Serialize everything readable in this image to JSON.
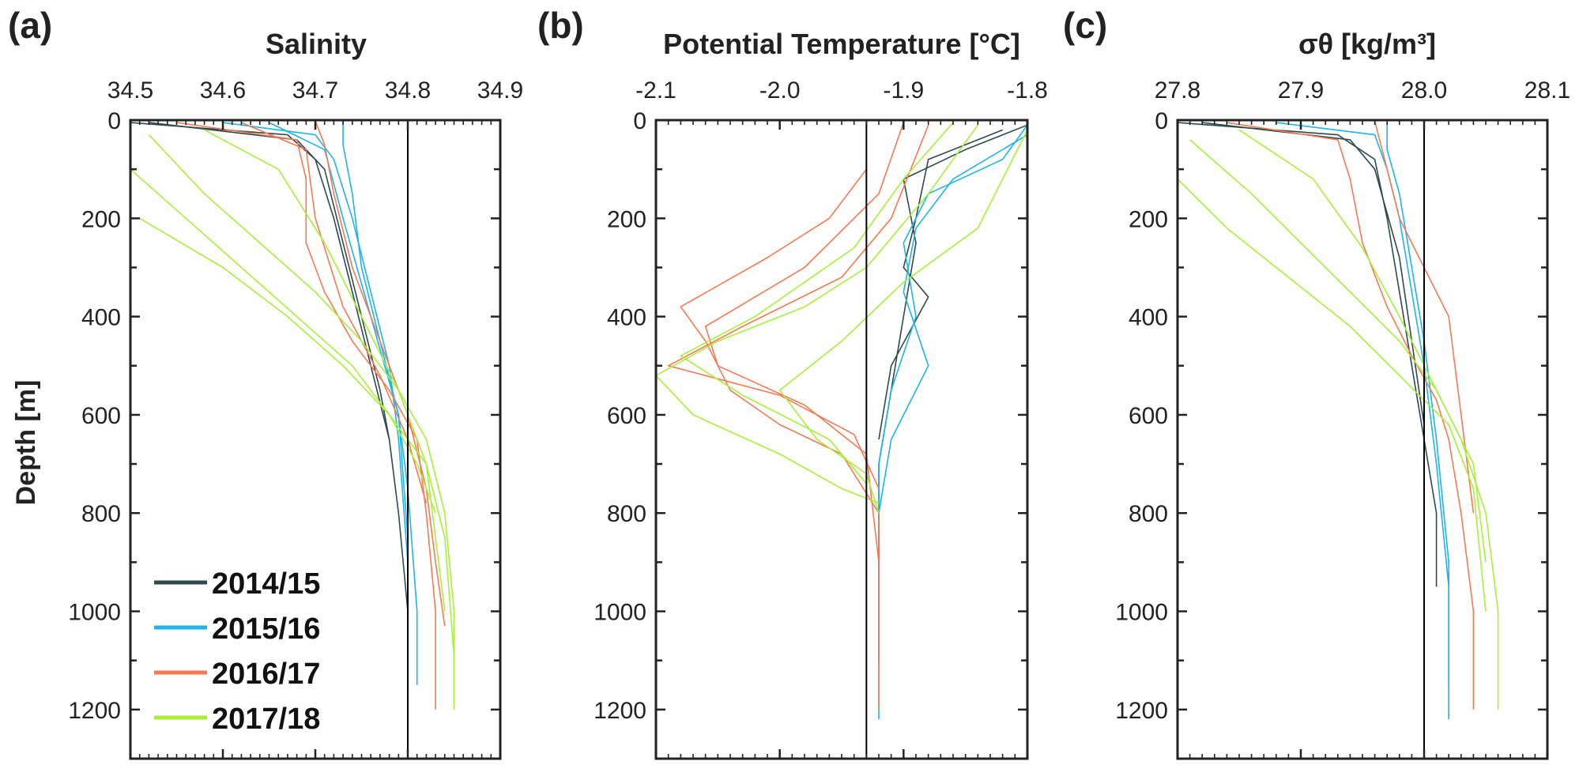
{
  "legend": [
    {
      "label": "2014/15",
      "color": "#2f4a4f"
    },
    {
      "label": "2015/16",
      "color": "#1db4ea"
    },
    {
      "label": "2016/17",
      "color": "#f47a54"
    },
    {
      "label": "2017/18",
      "color": "#a8f038"
    }
  ],
  "y_axis": {
    "label": "Depth [m]",
    "ylim": [
      0,
      1300
    ],
    "inverted": true,
    "ticks": [
      "0",
      "200",
      "400",
      "600",
      "800",
      "1000",
      "1200"
    ]
  },
  "chart_data": [
    {
      "type": "line",
      "panel": "(a)",
      "title": "",
      "xlabel": "Salinity",
      "xlim": [
        34.5,
        34.9
      ],
      "x_ticks": [
        "34.5",
        "34.6",
        "34.7",
        "34.8",
        "34.9"
      ],
      "reference_line_x": 34.8,
      "series": [
        {
          "name": "2014/15",
          "profiles": [
            {
              "x": [
                34.5,
                34.67,
                34.7,
                34.72,
                34.74,
                34.76,
                34.78,
                34.79,
                34.8,
                34.8
              ],
              "depth": [
                5,
                30,
                80,
                200,
                350,
                500,
                650,
                800,
                1000,
                1170
              ]
            },
            {
              "x": [
                34.52,
                34.68,
                34.71,
                34.73,
                34.75,
                34.77,
                34.78
              ],
              "depth": [
                5,
                40,
                100,
                250,
                400,
                550,
                650
              ]
            }
          ]
        },
        {
          "name": "2015/16",
          "profiles": [
            {
              "x": [
                34.6,
                34.7,
                34.72,
                34.74,
                34.76,
                34.78,
                34.79,
                34.8,
                34.8
              ],
              "depth": [
                5,
                30,
                80,
                200,
                350,
                500,
                650,
                900,
                1220
              ]
            },
            {
              "x": [
                34.73,
                34.73,
                34.74,
                34.75,
                34.77,
                34.79,
                34.8,
                34.81,
                34.81
              ],
              "depth": [
                2,
                50,
                150,
                300,
                450,
                600,
                750,
                1000,
                1150
              ]
            },
            {
              "x": [
                34.65,
                34.71,
                34.73,
                34.76,
                34.79,
                34.8
              ],
              "depth": [
                5,
                60,
                200,
                400,
                600,
                850
              ]
            }
          ]
        },
        {
          "name": "2016/17",
          "profiles": [
            {
              "x": [
                34.55,
                34.68,
                34.69,
                34.69,
                34.71,
                34.74,
                34.78,
                34.81,
                34.82,
                34.83,
                34.83
              ],
              "depth": [
                5,
                40,
                120,
                250,
                350,
                450,
                550,
                650,
                800,
                1000,
                1200
              ]
            },
            {
              "x": [
                34.7,
                34.71,
                34.72,
                34.74,
                34.77,
                34.8,
                34.82,
                34.83,
                34.84
              ],
              "depth": [
                2,
                50,
                150,
                300,
                450,
                600,
                750,
                900,
                1030
              ]
            },
            {
              "x": [
                34.62,
                34.69,
                34.7,
                34.73,
                34.77,
                34.8,
                34.82
              ],
              "depth": [
                5,
                60,
                200,
                380,
                520,
                650,
                780
              ]
            }
          ]
        },
        {
          "name": "2017/18",
          "profiles": [
            {
              "x": [
                34.52,
                34.58,
                34.64,
                34.7,
                34.75,
                34.79,
                34.82,
                34.84,
                34.85,
                34.85
              ],
              "depth": [
                30,
                150,
                250,
                350,
                450,
                550,
                650,
                800,
                1000,
                1200
              ]
            },
            {
              "x": [
                34.5,
                34.56,
                34.62,
                34.68,
                34.74,
                34.78,
                34.82,
                34.84,
                34.85
              ],
              "depth": [
                100,
                200,
                300,
                400,
                500,
                600,
                700,
                850,
                1090
              ]
            },
            {
              "x": [
                34.58,
                34.66,
                34.71,
                34.75,
                34.79,
                34.82,
                34.83,
                34.84
              ],
              "depth": [
                20,
                100,
                250,
                400,
                550,
                700,
                850,
                1000
              ]
            },
            {
              "x": [
                34.51,
                34.6,
                34.67,
                34.73,
                34.78,
                34.81,
                34.83
              ],
              "depth": [
                200,
                300,
                400,
                500,
                600,
                700,
                800
              ]
            }
          ]
        }
      ]
    },
    {
      "type": "line",
      "panel": "(b)",
      "title": "",
      "xlabel": "Potential Temperature [°C]",
      "xlim": [
        -2.1,
        -1.8
      ],
      "x_ticks": [
        "-2.1",
        "-2.0",
        "-1.9",
        "-1.8"
      ],
      "reference_line_x": -1.93,
      "series": [
        {
          "name": "2014/15",
          "profiles": [
            {
              "x": [
                -1.8,
                -1.85,
                -1.9,
                -1.89,
                -1.9,
                -1.91,
                -1.92,
                -1.92,
                -1.92
              ],
              "depth": [
                10,
                60,
                120,
                250,
                400,
                550,
                700,
                900,
                1100
              ]
            },
            {
              "x": [
                -1.82,
                -1.88,
                -1.89,
                -1.9,
                -1.88,
                -1.91,
                -1.92
              ],
              "depth": [
                20,
                80,
                200,
                300,
                360,
                500,
                650
              ]
            }
          ]
        },
        {
          "name": "2015/16",
          "profiles": [
            {
              "x": [
                -1.8,
                -1.82,
                -1.88,
                -1.9,
                -1.89,
                -1.91,
                -1.92,
                -1.92,
                -1.92
              ],
              "depth": [
                10,
                80,
                150,
                250,
                400,
                550,
                700,
                900,
                1220
              ]
            },
            {
              "x": [
                -1.8,
                -1.86,
                -1.89,
                -1.9,
                -1.88,
                -1.91,
                -1.92
              ],
              "depth": [
                30,
                120,
                220,
                350,
                500,
                650,
                800
              ]
            }
          ]
        },
        {
          "name": "2016/17",
          "profiles": [
            {
              "x": [
                -1.93,
                -1.93,
                -1.96,
                -2.01,
                -2.08,
                -2.06,
                -2.04,
                -2.0,
                -1.95,
                -1.92,
                -1.92,
                -1.92
              ],
              "depth": [
                5,
                100,
                200,
                280,
                380,
                450,
                550,
                620,
                680,
                800,
                1000,
                1200
              ]
            },
            {
              "x": [
                -1.9,
                -1.92,
                -1.98,
                -2.06,
                -2.05,
                -1.98,
                -1.93,
                -1.92
              ],
              "depth": [
                5,
                150,
                300,
                420,
                500,
                580,
                680,
                900
              ]
            },
            {
              "x": [
                -1.88,
                -1.91,
                -1.95,
                -2.03,
                -2.09,
                -2.0,
                -1.94,
                -1.92
              ],
              "depth": [
                10,
                200,
                320,
                420,
                500,
                560,
                640,
                750
              ]
            }
          ]
        },
        {
          "name": "2017/18",
          "profiles": [
            {
              "x": [
                -1.84,
                -1.88,
                -1.93,
                -1.98,
                -2.05,
                -2.1,
                -2.07,
                -2.0,
                -1.95,
                -1.92
              ],
              "depth": [
                10,
                150,
                300,
                380,
                450,
                520,
                600,
                680,
                750,
                780
              ]
            },
            {
              "x": [
                -1.8,
                -1.84,
                -1.9,
                -1.95,
                -2.0,
                -1.97,
                -1.93,
                -1.92
              ],
              "depth": [
                20,
                220,
                330,
                450,
                550,
                650,
                720,
                800
              ]
            },
            {
              "x": [
                -1.86,
                -1.9,
                -1.94,
                -2.02,
                -2.08,
                -2.03,
                -1.96,
                -1.93
              ],
              "depth": [
                5,
                120,
                260,
                400,
                480,
                560,
                650,
                740
              ]
            }
          ]
        }
      ]
    },
    {
      "type": "line",
      "panel": "(c)",
      "title": "",
      "xlabel": "σθ [kg/m³]",
      "xlim": [
        27.8,
        28.1
      ],
      "x_ticks": [
        "27.8",
        "27.9",
        "28.0",
        "28.1"
      ],
      "reference_line_x": 28.0,
      "series": [
        {
          "name": "2014/15",
          "profiles": [
            {
              "x": [
                27.8,
                27.93,
                27.96,
                27.97,
                27.98,
                27.99,
                28.0,
                28.01,
                28.01
              ],
              "depth": [
                5,
                30,
                80,
                200,
                350,
                500,
                650,
                800,
                950
              ]
            },
            {
              "x": [
                27.82,
                27.94,
                27.96,
                27.98,
                27.99,
                28.0
              ],
              "depth": [
                5,
                40,
                100,
                280,
                450,
                620
              ]
            }
          ]
        },
        {
          "name": "2015/16",
          "profiles": [
            {
              "x": [
                27.88,
                27.96,
                27.97,
                27.98,
                27.99,
                28.0,
                28.01,
                28.02,
                28.02
              ],
              "depth": [
                5,
                30,
                100,
                200,
                350,
                500,
                700,
                950,
                1220
              ]
            },
            {
              "x": [
                27.97,
                27.97,
                27.98,
                27.99,
                28.0,
                28.01,
                28.02,
                28.02
              ],
              "depth": [
                2,
                60,
                150,
                300,
                450,
                650,
                900,
                1150
              ]
            }
          ]
        },
        {
          "name": "2016/17",
          "profiles": [
            {
              "x": [
                27.84,
                27.93,
                27.94,
                27.95,
                27.97,
                27.99,
                28.01,
                28.02,
                28.03,
                28.04,
                28.04
              ],
              "depth": [
                5,
                40,
                120,
                250,
                380,
                480,
                570,
                650,
                800,
                1000,
                1200
              ]
            },
            {
              "x": [
                27.96,
                27.97,
                27.98,
                28.0,
                28.02,
                28.03,
                28.04
              ],
              "depth": [
                2,
                100,
                200,
                300,
                400,
                600,
                800
              ]
            }
          ]
        },
        {
          "name": "2017/18",
          "profiles": [
            {
              "x": [
                27.81,
                27.86,
                27.9,
                27.94,
                27.98,
                28.01,
                28.03,
                28.05,
                28.06,
                28.06
              ],
              "depth": [
                40,
                150,
                250,
                350,
                450,
                550,
                650,
                800,
                1000,
                1200
              ]
            },
            {
              "x": [
                27.8,
                27.84,
                27.89,
                27.94,
                27.98,
                28.02,
                28.04,
                28.05
              ],
              "depth": [
                120,
                220,
                320,
                420,
                520,
                620,
                750,
                1000
              ]
            },
            {
              "x": [
                27.85,
                27.91,
                27.95,
                27.98,
                28.01,
                28.04,
                28.05
              ],
              "depth": [
                20,
                120,
                260,
                400,
                550,
                700,
                900
              ]
            }
          ]
        }
      ]
    }
  ]
}
